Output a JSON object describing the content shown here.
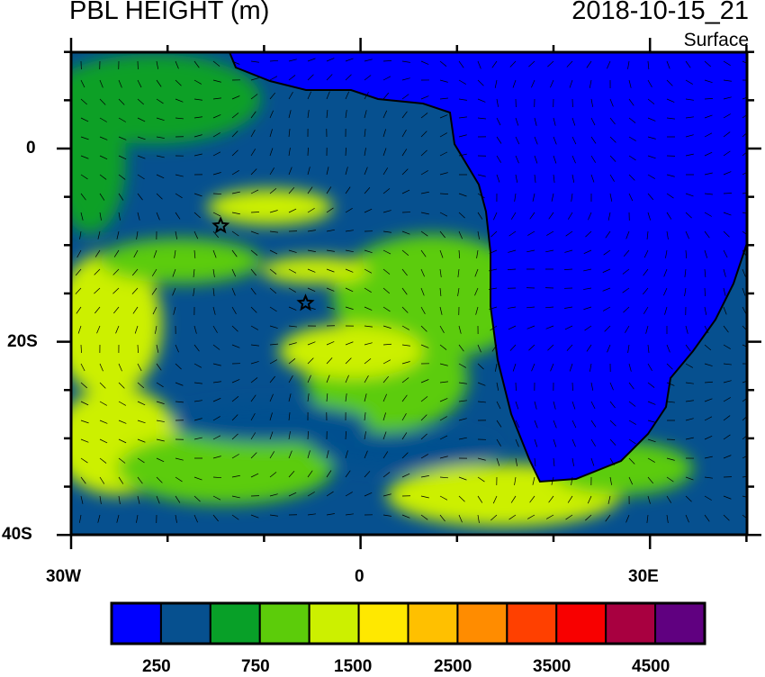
{
  "title": "PBL HEIGHT (m)",
  "valid_time": "2018-10-15_21",
  "level": "Surface",
  "axes": {
    "x_ticks": [
      "30W",
      "0",
      "30E"
    ],
    "y_ticks": [
      "0",
      "20S",
      "40S"
    ],
    "lon_range": [
      -30,
      40
    ],
    "lat_range": [
      -40,
      10
    ]
  },
  "colorbar": {
    "labels": [
      "250",
      "750",
      "1500",
      "2500",
      "3500",
      "4500"
    ],
    "colors": [
      "#0000ff",
      "#06508f",
      "#08a028",
      "#5ccc0a",
      "#ccf000",
      "#ffe800",
      "#ffc000",
      "#ff8c00",
      "#ff4000",
      "#f80000",
      "#a80040",
      "#600080"
    ]
  },
  "markers": [
    {
      "type": "star",
      "lon": -14.5,
      "lat": -8
    },
    {
      "type": "star",
      "lon": -5.7,
      "lat": -16
    }
  ],
  "overlay": "wind-barbs"
}
